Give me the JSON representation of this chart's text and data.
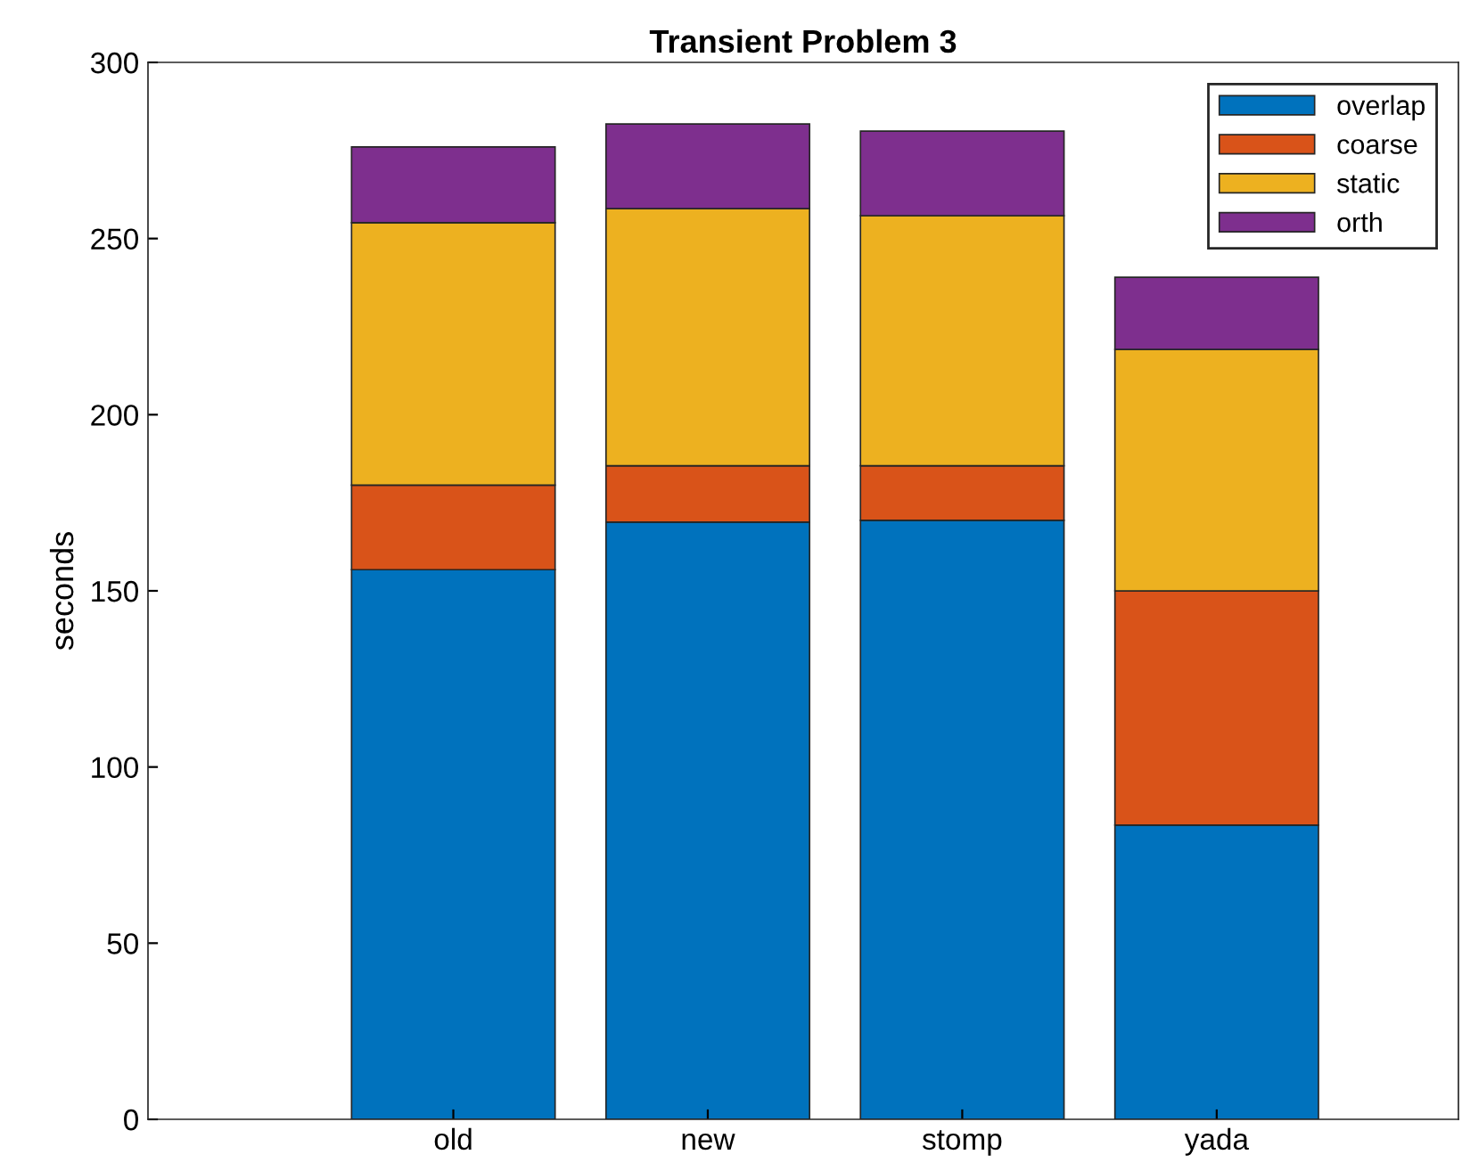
{
  "chart_data": {
    "type": "bar",
    "title": "Transient Problem 3",
    "ylabel": "seconds",
    "categories": [
      "old",
      "new",
      "stomp",
      "yada"
    ],
    "stacked": true,
    "series": [
      {
        "name": "overlap",
        "color": "#0072bd",
        "values": [
          156,
          169.5,
          170,
          83.5
        ]
      },
      {
        "name": "coarse",
        "color": "#d95319",
        "values": [
          24,
          16,
          15.5,
          66.5
        ]
      },
      {
        "name": "static",
        "color": "#edb120",
        "values": [
          74.5,
          73,
          71,
          68.5
        ]
      },
      {
        "name": "orth",
        "color": "#7e2f8e",
        "values": [
          21.5,
          24,
          24,
          20.5
        ]
      }
    ],
    "ylim": [
      0,
      300
    ],
    "yticks": [
      0,
      50,
      100,
      150,
      200,
      250,
      300
    ],
    "grid": false,
    "legend": "top right"
  }
}
